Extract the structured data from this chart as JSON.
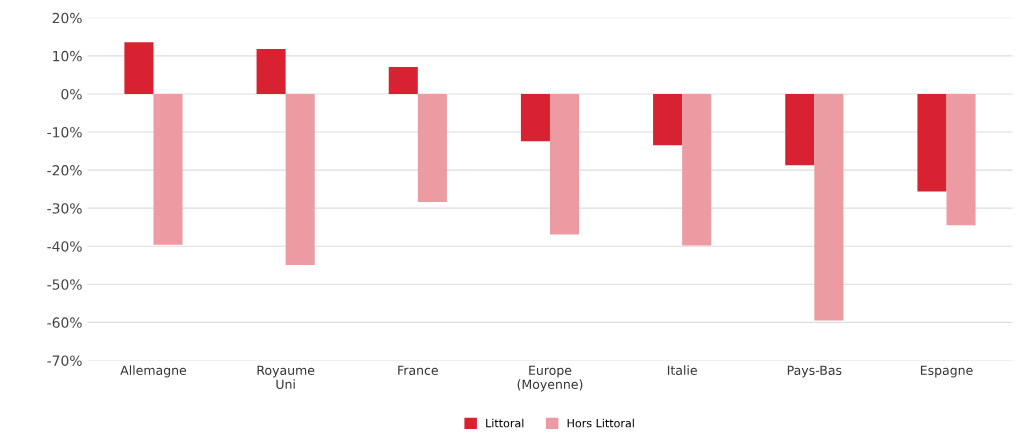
{
  "chart_data": {
    "type": "bar",
    "categories": [
      "Allemagne",
      "Royaume\nUni",
      "France",
      "Europe\n(Moyenne)",
      "Italie",
      "Pays-Bas",
      "Espagne"
    ],
    "series": [
      {
        "name": "Littoral",
        "color": "#d92231",
        "values": [
          13.6,
          11.8,
          7.1,
          -12.4,
          -13.5,
          -18.7,
          -25.6
        ]
      },
      {
        "name": "Hors Littoral",
        "color": "#ec9ba3",
        "values": [
          -39.6,
          -44.9,
          -28.4,
          -36.9,
          -39.8,
          -59.5,
          -34.5
        ]
      }
    ],
    "ylim": [
      -70,
      20
    ],
    "yticks": [
      {
        "value": -70,
        "label": "-70%"
      },
      {
        "value": -60,
        "label": "-60%"
      },
      {
        "value": -50,
        "label": "-50%"
      },
      {
        "value": -40,
        "label": "-40%"
      },
      {
        "value": -30,
        "label": "-30%"
      },
      {
        "value": -20,
        "label": "-20%"
      },
      {
        "value": -10,
        "label": "-10%"
      },
      {
        "value": 0,
        "label": "0%"
      },
      {
        "value": 10,
        "label": "10%"
      },
      {
        "value": 20,
        "label": "20%"
      }
    ],
    "grid": "y",
    "legend": "bottom"
  }
}
